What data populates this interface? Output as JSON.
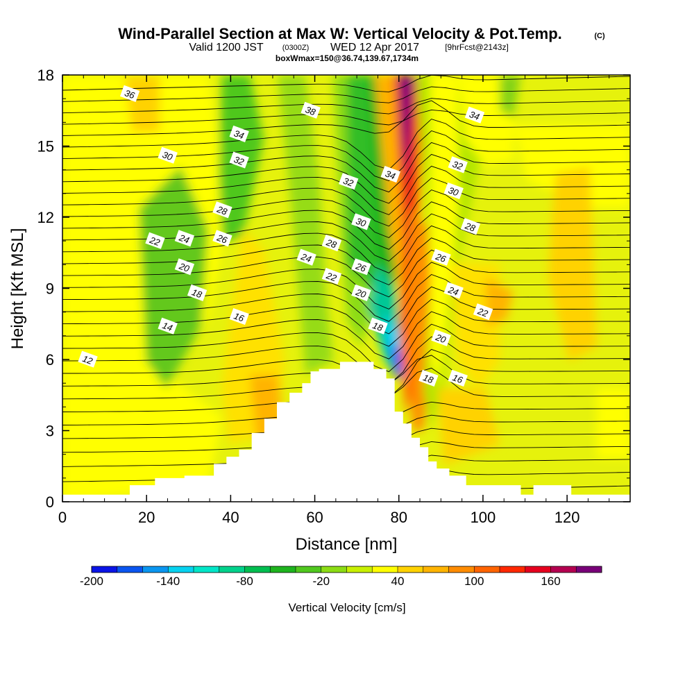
{
  "header": {
    "title": "Wind-Parallel Section at Max W: Vertical Velocity & Pot.Temp.",
    "copyright": "(C)",
    "valid_prefix": "Valid 1200 JST",
    "valid_utc": "(0300Z)",
    "valid_date": "WED 12 Apr 2017",
    "forecast": "[9hrFcst@2143z]",
    "box_info": "boxWmax=150@36.74,139.67,1734m"
  },
  "chart_data": {
    "type": "heatmap",
    "xlabel": "Distance [nm]",
    "ylabel": "Height [Kft MSL]",
    "xlim": [
      0,
      135
    ],
    "ylim": [
      0,
      18
    ],
    "x_ticks": [
      0,
      20,
      40,
      60,
      80,
      100,
      120
    ],
    "y_ticks": [
      0,
      3,
      6,
      9,
      12,
      15,
      18
    ],
    "colorbar": {
      "label": "Vertical Velocity [cm/s]",
      "tick_labels": [
        -200,
        -140,
        -80,
        -20,
        40,
        100,
        160
      ],
      "levels": [
        -200,
        -180,
        -160,
        -140,
        -120,
        -100,
        -80,
        -60,
        -40,
        -20,
        0,
        20,
        40,
        60,
        80,
        100,
        120,
        140,
        160,
        180,
        200
      ],
      "colors": [
        "#0a14e6",
        "#0a55f0",
        "#0a96f0",
        "#06d2f0",
        "#00e6c8",
        "#00d28c",
        "#00be50",
        "#1eb41e",
        "#50c81e",
        "#8cdc14",
        "#c8f000",
        "#ffff00",
        "#ffd200",
        "#ffb400",
        "#ff8c00",
        "#ff6400",
        "#ff2800",
        "#e6001e",
        "#b40050",
        "#780078"
      ]
    },
    "terrain": [
      [
        0,
        0.3
      ],
      [
        16,
        0.3
      ],
      [
        16,
        0.7
      ],
      [
        22,
        0.7
      ],
      [
        22,
        1.0
      ],
      [
        29,
        1.0
      ],
      [
        29,
        1.1
      ],
      [
        36,
        1.1
      ],
      [
        36,
        1.6
      ],
      [
        39,
        1.6
      ],
      [
        39,
        1.9
      ],
      [
        42,
        1.9
      ],
      [
        42,
        2.2
      ],
      [
        45,
        2.2
      ],
      [
        45,
        2.9
      ],
      [
        48,
        2.9
      ],
      [
        48,
        3.5
      ],
      [
        51,
        3.5
      ],
      [
        51,
        4.2
      ],
      [
        54,
        4.2
      ],
      [
        54,
        4.6
      ],
      [
        57,
        4.6
      ],
      [
        57,
        5.0
      ],
      [
        59,
        5.0
      ],
      [
        59,
        5.5
      ],
      [
        61,
        5.5
      ],
      [
        61,
        5.6
      ],
      [
        66,
        5.6
      ],
      [
        66,
        5.9
      ],
      [
        74,
        5.9
      ],
      [
        74,
        5.6
      ],
      [
        77,
        5.6
      ],
      [
        77,
        5.2
      ],
      [
        79,
        5.2
      ],
      [
        79,
        3.8
      ],
      [
        81,
        3.8
      ],
      [
        81,
        3.3
      ],
      [
        83,
        3.3
      ],
      [
        83,
        2.7
      ],
      [
        85,
        2.7
      ],
      [
        85,
        2.3
      ],
      [
        87,
        2.3
      ],
      [
        87,
        1.7
      ],
      [
        89,
        1.7
      ],
      [
        89,
        1.4
      ],
      [
        92,
        1.4
      ],
      [
        92,
        1.1
      ],
      [
        96,
        1.1
      ],
      [
        96,
        0.7
      ],
      [
        109,
        0.7
      ],
      [
        109,
        0.3
      ],
      [
        112,
        0.3
      ],
      [
        112,
        0.7
      ],
      [
        121,
        0.7
      ],
      [
        121,
        0.3
      ],
      [
        135,
        0.3
      ]
    ],
    "contour_labels": [
      {
        "text": "36",
        "x": 16,
        "y": 17.2
      },
      {
        "text": "34",
        "x": 42,
        "y": 15.5
      },
      {
        "text": "32",
        "x": 42,
        "y": 14.4
      },
      {
        "text": "30",
        "x": 25,
        "y": 14.6
      },
      {
        "text": "28",
        "x": 38,
        "y": 12.3
      },
      {
        "text": "26",
        "x": 38,
        "y": 11.1
      },
      {
        "text": "24",
        "x": 29,
        "y": 11.1
      },
      {
        "text": "22",
        "x": 22,
        "y": 11.0
      },
      {
        "text": "20",
        "x": 29,
        "y": 9.9
      },
      {
        "text": "18",
        "x": 32,
        "y": 8.8
      },
      {
        "text": "16",
        "x": 42,
        "y": 7.8
      },
      {
        "text": "14",
        "x": 25,
        "y": 7.4
      },
      {
        "text": "12",
        "x": 6,
        "y": 6.0
      },
      {
        "text": "38",
        "x": 59,
        "y": 16.5
      },
      {
        "text": "32",
        "x": 68,
        "y": 13.5
      },
      {
        "text": "34",
        "x": 78,
        "y": 13.8
      },
      {
        "text": "30",
        "x": 71,
        "y": 11.8
      },
      {
        "text": "28",
        "x": 64,
        "y": 10.9
      },
      {
        "text": "26",
        "x": 71,
        "y": 9.9
      },
      {
        "text": "24",
        "x": 58,
        "y": 10.3
      },
      {
        "text": "22",
        "x": 64,
        "y": 9.5
      },
      {
        "text": "20",
        "x": 71,
        "y": 8.8
      },
      {
        "text": "18",
        "x": 75,
        "y": 7.4
      },
      {
        "text": "34",
        "x": 98,
        "y": 16.3
      },
      {
        "text": "32",
        "x": 94,
        "y": 14.2
      },
      {
        "text": "30",
        "x": 93,
        "y": 13.1
      },
      {
        "text": "28",
        "x": 97,
        "y": 11.6
      },
      {
        "text": "26",
        "x": 90,
        "y": 10.3
      },
      {
        "text": "24",
        "x": 93,
        "y": 8.9
      },
      {
        "text": "22",
        "x": 100,
        "y": 8.0
      },
      {
        "text": "20",
        "x": 90,
        "y": 6.9
      },
      {
        "text": "18",
        "x": 87,
        "y": 5.2
      },
      {
        "text": "16",
        "x": 94,
        "y": 5.2
      }
    ]
  }
}
